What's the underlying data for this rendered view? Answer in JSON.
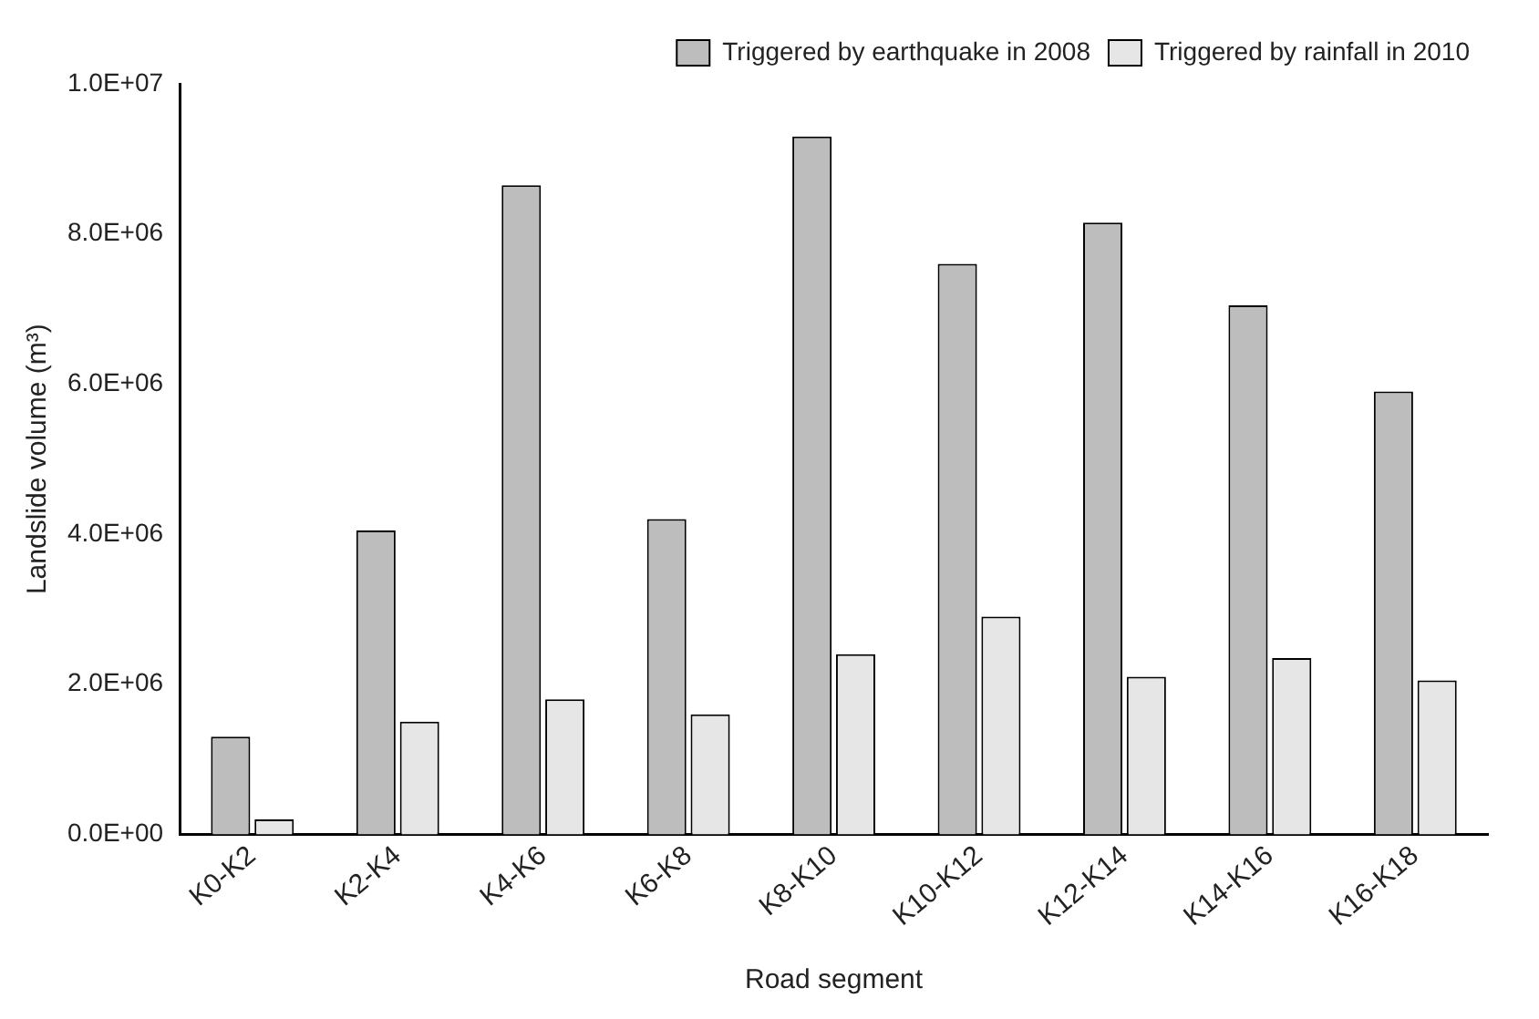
{
  "chart_data": {
    "type": "bar",
    "xlabel": "Road segment",
    "ylabel": "Landslide volume (m³)",
    "categories": [
      "K0-K2",
      "K2-K4",
      "K4-K6",
      "K6-K8",
      "K8-K10",
      "K10-K12",
      "K12-K14",
      "K14-K16",
      "K16-K18"
    ],
    "series": [
      {
        "name": "Triggered by earthquake in 2008",
        "color": "#bdbdbd",
        "values": [
          1300000,
          4050000,
          8650000,
          4200000,
          9300000,
          7600000,
          8150000,
          7050000,
          5900000
        ]
      },
      {
        "name": "Triggered by rainfall in 2010",
        "color": "#e6e6e6",
        "values": [
          200000,
          1500000,
          1800000,
          1600000,
          2400000,
          2900000,
          2100000,
          2350000,
          2050000
        ]
      }
    ],
    "ylim": [
      0,
      10000000
    ],
    "yticks": [
      {
        "value": 0,
        "label": "0.0E+00"
      },
      {
        "value": 2000000,
        "label": "2.0E+06"
      },
      {
        "value": 4000000,
        "label": "4.0E+06"
      },
      {
        "value": 6000000,
        "label": "6.0E+06"
      },
      {
        "value": 8000000,
        "label": "8.0E+06"
      },
      {
        "value": 10000000,
        "label": "1.0E+07"
      }
    ],
    "grid": false,
    "legend": "top right"
  }
}
